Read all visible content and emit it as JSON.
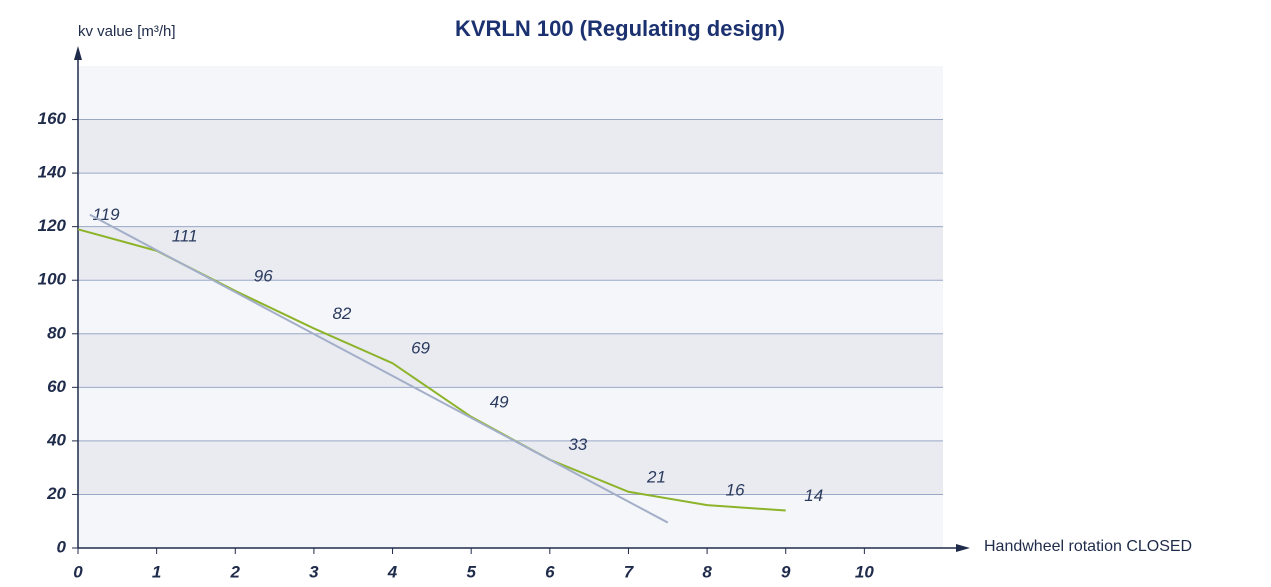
{
  "chart_data": {
    "type": "line",
    "title": "KVRLN 100 (Regulating design)",
    "y_label": "kv value [m³/h]",
    "x_label": "Handwheel rotation CLOSED",
    "xlim": [
      0,
      11
    ],
    "ylim": [
      0,
      180
    ],
    "xticks": [
      0,
      1,
      2,
      3,
      4,
      5,
      6,
      7,
      8,
      9,
      10
    ],
    "yticks": [
      0,
      20,
      40,
      60,
      80,
      100,
      120,
      140,
      160
    ],
    "grid": true,
    "series": [
      {
        "color": "#8db32a",
        "x": [
          0,
          1,
          2,
          3,
          4,
          5,
          6,
          7,
          8,
          9
        ],
        "values": [
          119,
          111,
          96,
          82,
          69,
          49,
          33,
          21,
          16,
          14
        ],
        "labeled": true
      },
      {
        "color": "#a3afc9",
        "x": [
          0.15,
          7.5
        ],
        "values": [
          124.5,
          9.5
        ]
      }
    ]
  }
}
